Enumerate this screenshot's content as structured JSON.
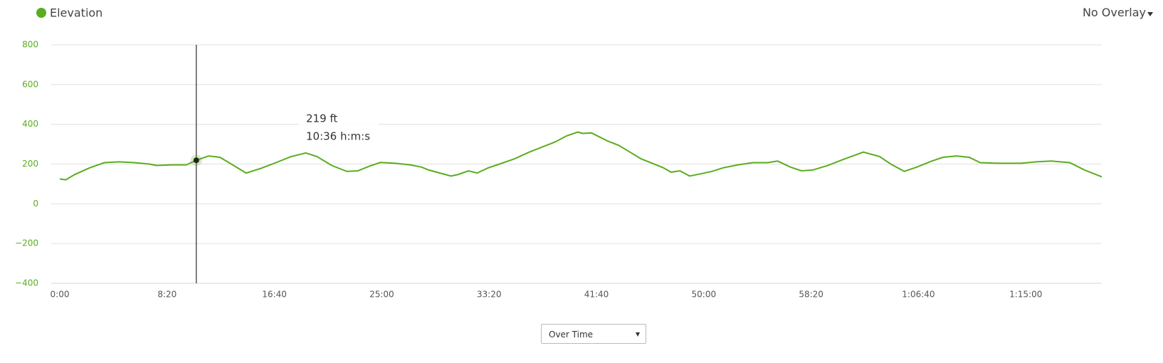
{
  "chart_data": {
    "type": "line",
    "series": [
      {
        "name": "Elevation",
        "color": "#5aad1e",
        "values": [
          125,
          121,
          147,
          181,
          207,
          211,
          207,
          200,
          193,
          196,
          196,
          219,
          241,
          234,
          200,
          155,
          178,
          207,
          237,
          256,
          238,
          193,
          163,
          166,
          189,
          208,
          204,
          196,
          185,
          170,
          155,
          140,
          148,
          166,
          155,
          181,
          200,
          226,
          260,
          290,
          312,
          342,
          361,
          354,
          357,
          335,
          316,
          294,
          260,
          226,
          204,
          181,
          159,
          166,
          140,
          151,
          163,
          181,
          196,
          207,
          207,
          215,
          185,
          166,
          170,
          192,
          222,
          260,
          238,
          200,
          163,
          185,
          215,
          234,
          241,
          234,
          207,
          204,
          204,
          211,
          215,
          207,
          170,
          136
        ]
      }
    ],
    "x": [
      0,
      28,
      69,
      139,
      208,
      278,
      347,
      417,
      451,
      521,
      590,
      635,
      694,
      746,
      799,
      868,
      937,
      1007,
      1076,
      1146,
      1198,
      1267,
      1337,
      1389,
      1441,
      1493,
      1562,
      1632,
      1684,
      1719,
      1771,
      1823,
      1858,
      1903,
      1944,
      1996,
      2048,
      2118,
      2187,
      2257,
      2309,
      2361,
      2413,
      2437,
      2476,
      2517,
      2552,
      2604,
      2656,
      2708,
      2760,
      2812,
      2847,
      2889,
      2934,
      2986,
      3038,
      3090,
      3159,
      3229,
      3298,
      3344,
      3403,
      3455,
      3507,
      3576,
      3646,
      3743,
      3819,
      3871,
      3934,
      3993,
      4062,
      4114,
      4177,
      4236,
      4288,
      4375,
      4479,
      4548,
      4618,
      4705,
      4774,
      4854
    ],
    "xlim": [
      0,
      4854
    ],
    "xticks": [
      {
        "value": 0,
        "label": "0:00"
      },
      {
        "value": 500,
        "label": "8:20"
      },
      {
        "value": 1000,
        "label": "16:40"
      },
      {
        "value": 1500,
        "label": "25:00"
      },
      {
        "value": 2000,
        "label": "33:20"
      },
      {
        "value": 2500,
        "label": "41:40"
      },
      {
        "value": 3000,
        "label": "50:00"
      },
      {
        "value": 3500,
        "label": "58:20"
      },
      {
        "value": 4000,
        "label": "1:06:40"
      },
      {
        "value": 4500,
        "label": "1:15:00"
      }
    ],
    "ylim": [
      -400,
      800
    ],
    "yticks": [
      {
        "value": -400,
        "label": "−400"
      },
      {
        "value": -200,
        "label": "−200"
      },
      0,
      200,
      400,
      600,
      800
    ],
    "grid": true,
    "tooltip": {
      "value": 219,
      "value_label": "219 ft",
      "time": 636,
      "time_label": "10:36 h:m:s"
    }
  },
  "overlay_menu": "No Overlay",
  "view_select": "Over Time"
}
